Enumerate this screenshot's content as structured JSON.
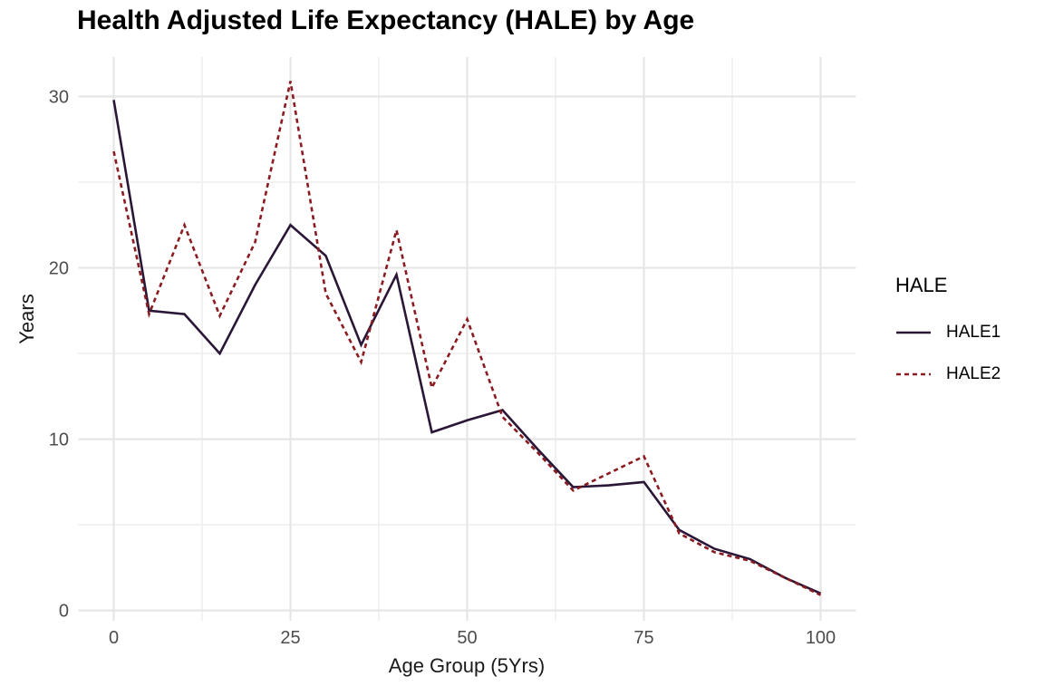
{
  "title": "Health Adjusted Life Expectancy (HALE) by Age",
  "x_axis": {
    "label": "Age Group (5Yrs)",
    "ticks": [
      0,
      25,
      50,
      75,
      100
    ],
    "minor_ticks": [
      12.5,
      37.5,
      62.5,
      87.5
    ]
  },
  "y_axis": {
    "label": "Years",
    "ticks": [
      0,
      10,
      20,
      30
    ],
    "minor_ticks": [
      5,
      15,
      25
    ]
  },
  "legend": {
    "title": "HALE"
  },
  "colors": {
    "hale1": "#2A1636",
    "hale2": "#8A1C21",
    "grid_major": "#E6E6E6",
    "grid_minor": "#F0F0F0",
    "tick_text": "#4D4D4D",
    "axis_title_text": "#1A1A1A",
    "title_text": "#000000",
    "background": "#FFFFFF"
  },
  "chart_data": {
    "type": "line",
    "title": "Health Adjusted Life Expectancy (HALE) by Age",
    "xlabel": "Age Group (5Yrs)",
    "ylabel": "Years",
    "x": [
      0,
      5,
      10,
      15,
      20,
      25,
      30,
      35,
      40,
      45,
      50,
      55,
      60,
      65,
      70,
      75,
      80,
      85,
      90,
      95,
      100
    ],
    "series": [
      {
        "name": "HALE1",
        "style": "solid",
        "color": "#2A1636",
        "values": [
          29.8,
          17.5,
          17.3,
          15.0,
          19.0,
          22.5,
          20.7,
          15.5,
          19.6,
          10.4,
          11.1,
          11.7,
          9.4,
          7.2,
          7.3,
          7.5,
          4.7,
          3.6,
          3.0,
          1.9,
          1.0
        ]
      },
      {
        "name": "HALE2",
        "style": "dashed",
        "color": "#8A1C21",
        "values": [
          26.8,
          17.3,
          22.5,
          17.2,
          21.5,
          30.9,
          18.5,
          14.5,
          22.2,
          13.0,
          17.0,
          11.3,
          9.2,
          7.0,
          8.0,
          9.0,
          4.5,
          3.4,
          2.9,
          1.9,
          0.9
        ]
      }
    ],
    "xlim": [
      -5,
      105
    ],
    "ylim": [
      -0.6,
      32.3
    ],
    "grid": true,
    "legend_position": "right"
  }
}
